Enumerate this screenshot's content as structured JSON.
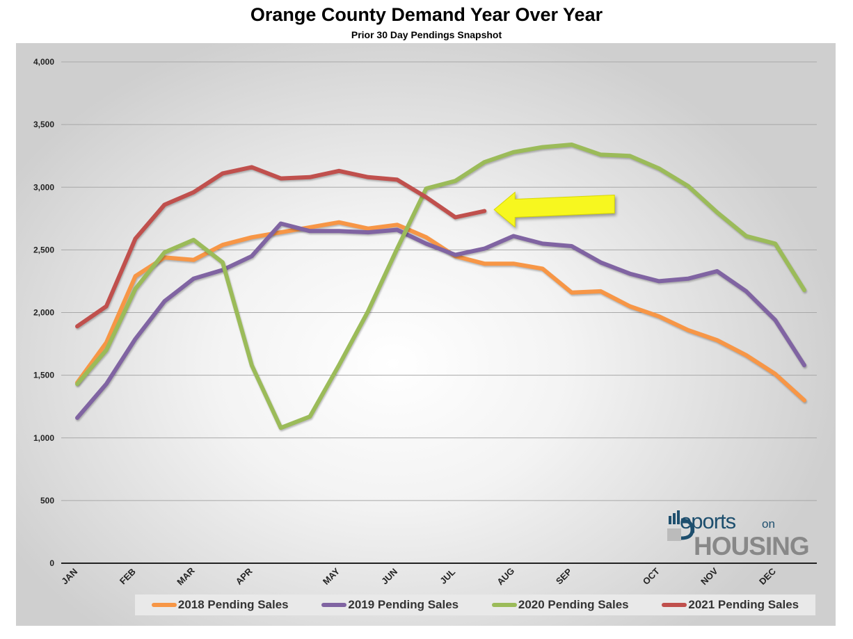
{
  "chart_data": {
    "type": "line",
    "title": "Orange County Demand Year Over Year",
    "subtitle": "Prior 30 Day Pendings Snapshot",
    "ylim": [
      0,
      4000
    ],
    "yticks": [
      0,
      500,
      1000,
      1500,
      2000,
      2500,
      3000,
      3500,
      4000
    ],
    "ytick_labels": [
      "0",
      "500",
      "1,000",
      "1,500",
      "2,000",
      "2,500",
      "3,000",
      "3,500",
      "4,000"
    ],
    "x_count": 26,
    "month_labels": [
      {
        "label": "JAN",
        "index": 0
      },
      {
        "label": "FEB",
        "index": 2
      },
      {
        "label": "MAR",
        "index": 4
      },
      {
        "label": "APR",
        "index": 6
      },
      {
        "label": "MAY",
        "index": 9
      },
      {
        "label": "JUN",
        "index": 11
      },
      {
        "label": "JUL",
        "index": 13
      },
      {
        "label": "AUG",
        "index": 15
      },
      {
        "label": "SEP",
        "index": 17
      },
      {
        "label": "OCT",
        "index": 20
      },
      {
        "label": "NOV",
        "index": 22
      },
      {
        "label": "DEC",
        "index": 24
      }
    ],
    "grid": true,
    "legend_position": "bottom",
    "series": [
      {
        "name": "2018 Pending Sales",
        "color": "#f79646",
        "values": [
          1440,
          1760,
          2290,
          2440,
          2420,
          2540,
          2600,
          2640,
          2680,
          2720,
          2670,
          2700,
          2600,
          2450,
          2390,
          2390,
          2350,
          2160,
          2170,
          2050,
          1970,
          1860,
          1780,
          1660,
          1510,
          1300
        ]
      },
      {
        "name": "2019 Pending Sales",
        "color": "#8064a2",
        "values": [
          1160,
          1430,
          1790,
          2090,
          2270,
          2340,
          2450,
          2710,
          2650,
          2650,
          2640,
          2660,
          2550,
          2460,
          2510,
          2610,
          2550,
          2530,
          2400,
          2310,
          2250,
          2270,
          2330,
          2170,
          1940,
          1580
        ]
      },
      {
        "name": "2020 Pending Sales",
        "color": "#9bbb59",
        "values": [
          1430,
          1700,
          2190,
          2480,
          2580,
          2400,
          1580,
          1080,
          1170,
          1580,
          2010,
          2510,
          2990,
          3050,
          3200,
          3280,
          3320,
          3340,
          3260,
          3250,
          3150,
          3010,
          2800,
          2610,
          2550,
          2180
        ]
      },
      {
        "name": "2021 Pending Sales",
        "color": "#c0504d",
        "values": [
          1890,
          2050,
          2590,
          2860,
          2960,
          3110,
          3160,
          3070,
          3080,
          3130,
          3080,
          3060,
          2920,
          2760,
          2810
        ]
      }
    ],
    "annotation": {
      "type": "arrow",
      "color": "#f7f71f",
      "points_to_index": 14,
      "points_to_value": 2810
    }
  },
  "logo": {
    "reports": "eports",
    "on": "on",
    "housing": "HOUSING"
  }
}
